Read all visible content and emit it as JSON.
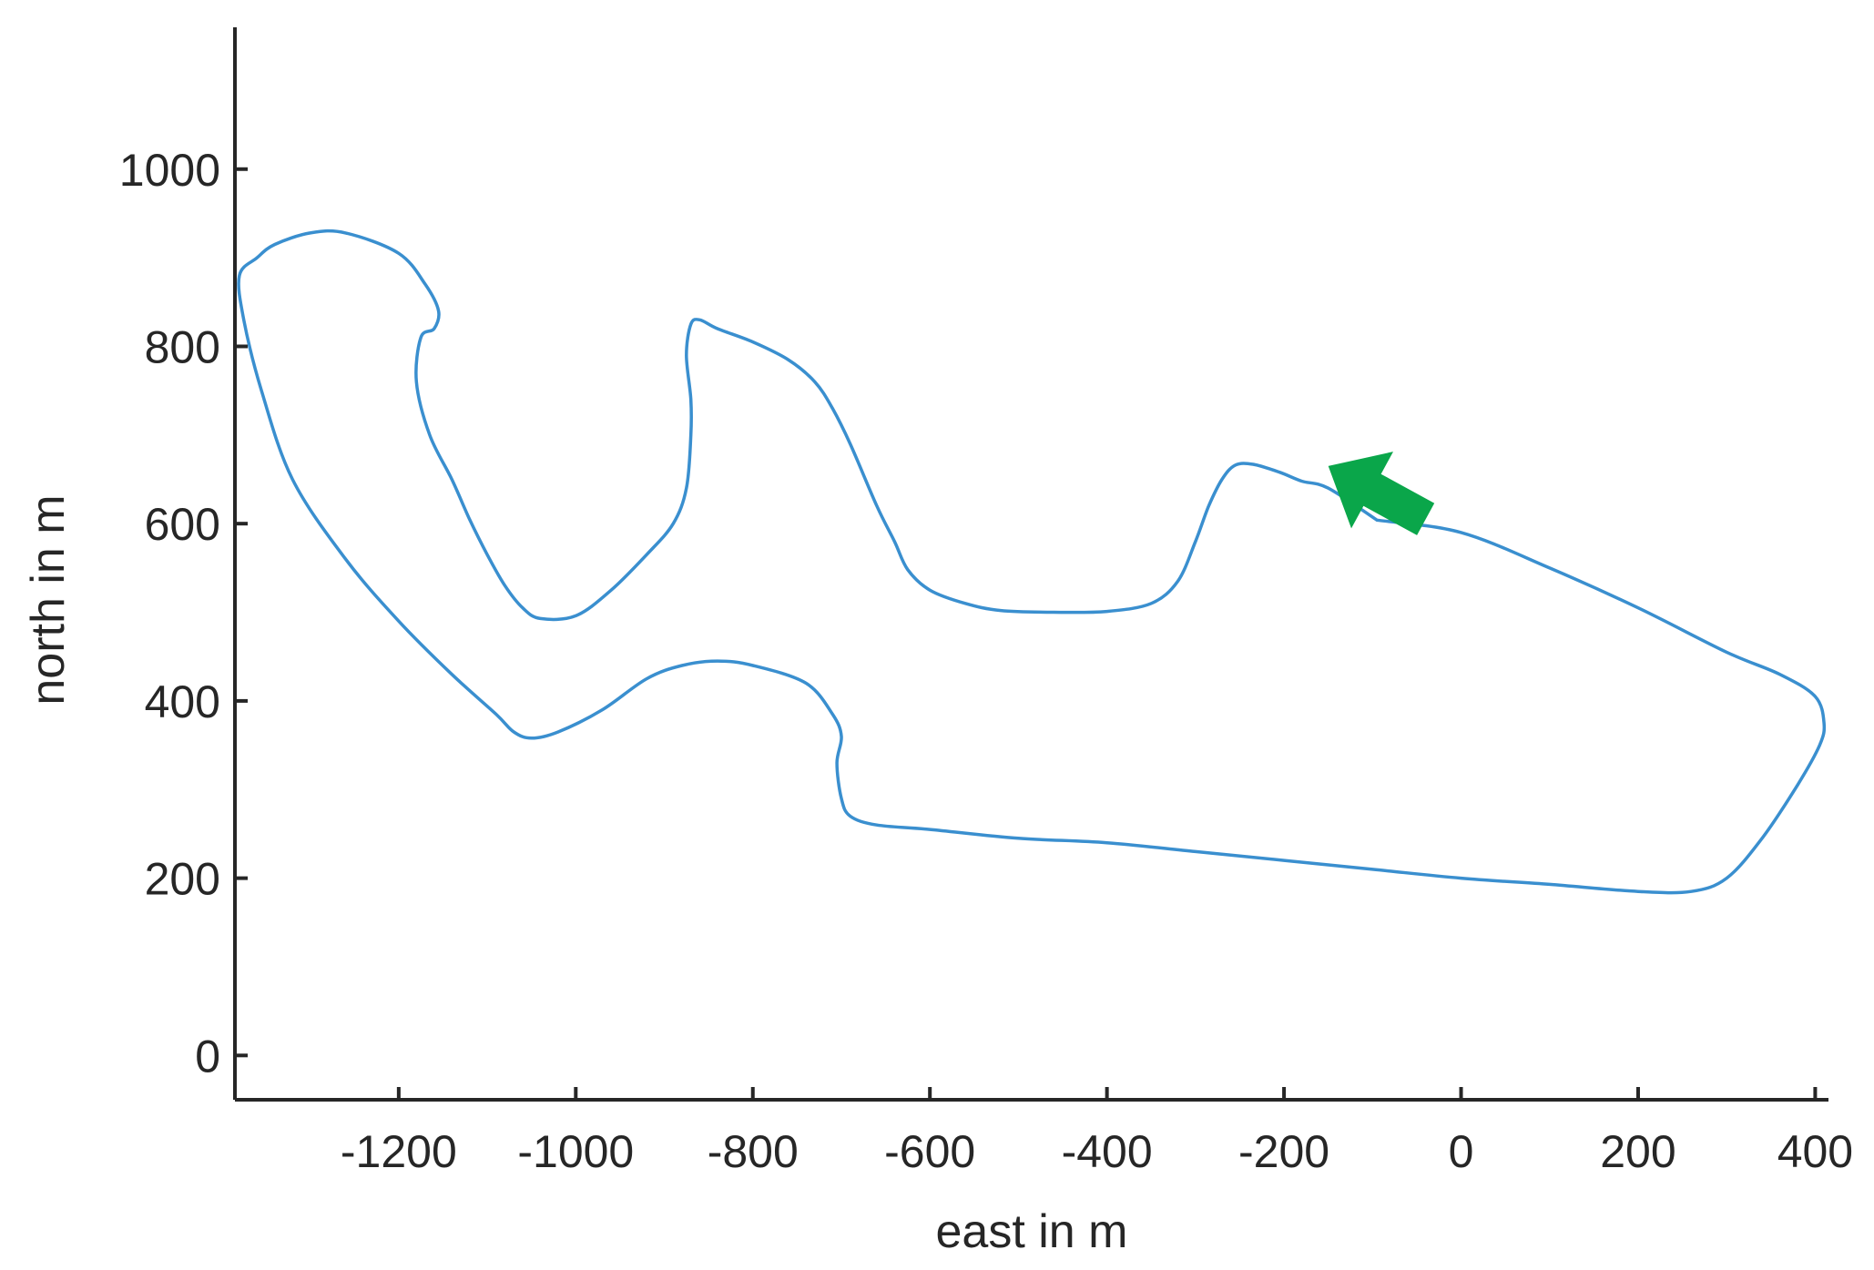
{
  "chart_data": {
    "type": "line",
    "title": "",
    "xlabel": "east in m",
    "ylabel": "north in m",
    "xlim": [
      -1385,
      415
    ],
    "ylim": [
      -50,
      1160
    ],
    "xticks": [
      -1200,
      -1000,
      -800,
      -600,
      -400,
      -200,
      0,
      200,
      400
    ],
    "yticks": [
      0,
      200,
      400,
      600,
      800,
      1000
    ],
    "grid": false,
    "colors": {
      "track": "#3a8fcf",
      "arrow": "#0aa64a",
      "axis": "#262626"
    },
    "series": [
      {
        "x": [
          -95,
          -150,
          -180,
          -205,
          -235,
          -255,
          -270,
          -285,
          -300,
          -320,
          -350,
          -400,
          -460,
          -520,
          -560,
          -600,
          -625,
          -640,
          -660,
          -690,
          -710,
          -730,
          -760,
          -800,
          -840,
          -860,
          -870,
          -875,
          -870,
          -870,
          -875,
          -890,
          -920,
          -960,
          -1000,
          -1040,
          -1060,
          -1080,
          -1100,
          -1120,
          -1140,
          -1165,
          -1180,
          -1175,
          -1160,
          -1155,
          -1170,
          -1200,
          -1260,
          -1300,
          -1340,
          -1360,
          -1380,
          -1375,
          -1355,
          -1320,
          -1260,
          -1200,
          -1140,
          -1090,
          -1070,
          -1050,
          -1020,
          -970,
          -920,
          -880,
          -840,
          -800,
          -740,
          -710,
          -700,
          -705,
          -700,
          -690,
          -660,
          -600,
          -500,
          -400,
          -300,
          -200,
          -100,
          0,
          100,
          200,
          260,
          300,
          340,
          380,
          405,
          410,
          400,
          360,
          300,
          200,
          100,
          0,
          -95
        ],
        "y": [
          604,
          640,
          648,
          658,
          667,
          666,
          650,
          620,
          580,
          535,
          510,
          501,
          500,
          502,
          510,
          525,
          548,
          580,
          620,
          690,
          730,
          760,
          785,
          805,
          820,
          830,
          825,
          790,
          740,
          700,
          640,
          600,
          565,
          525,
          496,
          493,
          505,
          530,
          565,
          605,
          650,
          700,
          760,
          810,
          820,
          840,
          870,
          905,
          928,
          928,
          915,
          900,
          880,
          830,
          750,
          650,
          560,
          490,
          430,
          385,
          365,
          358,
          365,
          390,
          425,
          440,
          445,
          440,
          420,
          385,
          360,
          330,
          290,
          270,
          260,
          255,
          245,
          240,
          230,
          220,
          210,
          200,
          193,
          185,
          185,
          200,
          245,
          305,
          350,
          375,
          405,
          430,
          455,
          505,
          550,
          590,
          604
        ]
      }
    ],
    "annotations": [
      {
        "type": "arrow",
        "tail": [
          -40,
          605
        ],
        "head": [
          -150,
          665
        ]
      }
    ]
  }
}
